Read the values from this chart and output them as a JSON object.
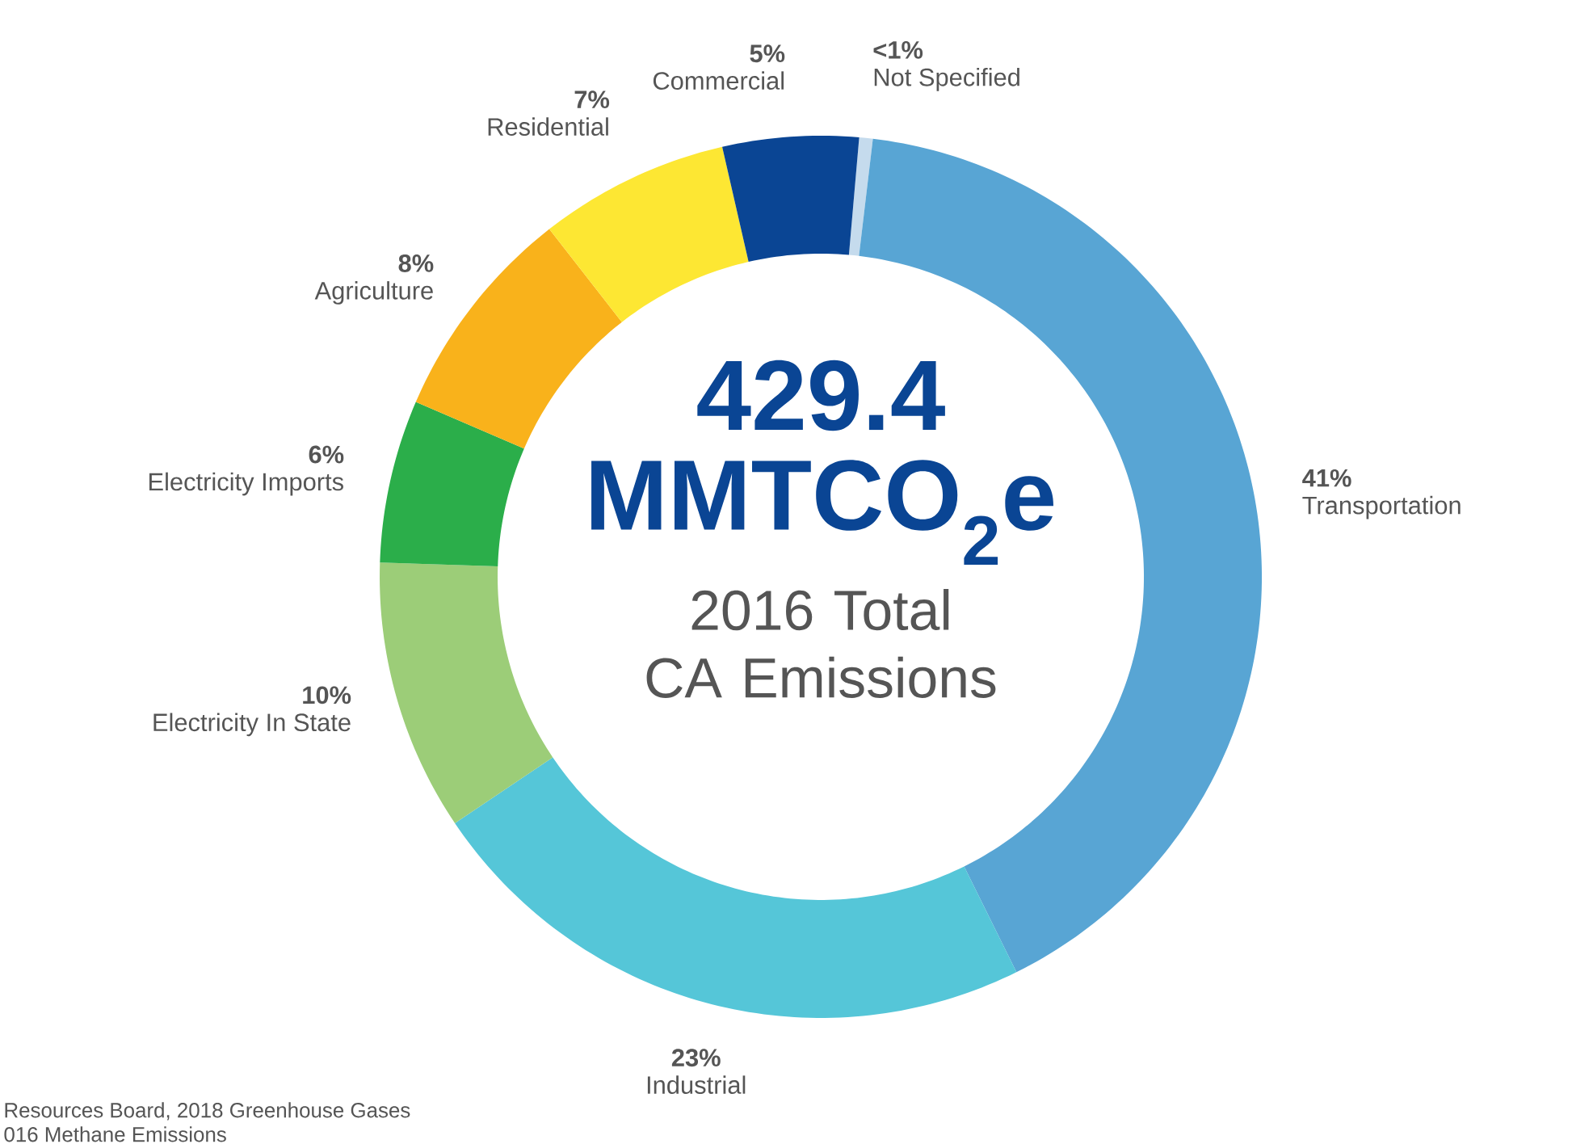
{
  "chart_data": {
    "type": "donut",
    "title": "429.4 MMTCO$_{2}$e",
    "subtitle": "2016 Total CA Emissions",
    "categories": [
      "Not Specified",
      "Transportation",
      "Industrial",
      "Electricity In State",
      "Electricity Imports",
      "Agriculture",
      "Residential",
      "Commercial"
    ],
    "values": [
      0.5,
      41,
      23,
      10,
      6,
      8,
      7,
      5
    ],
    "value_labels": [
      "<1%",
      "41%",
      "23%",
      "10%",
      "6%",
      "8%",
      "7%",
      "5%"
    ],
    "colors": [
      "#c5dbed",
      "#58a5d4",
      "#55c6d8",
      "#9ccd78",
      "#2bae4a",
      "#f9b21b",
      "#fde733",
      "#0a4594"
    ],
    "annotations": [
      "Resources Board, 2018 Greenhouse Gases",
      "016 Methane Emissions"
    ]
  }
}
